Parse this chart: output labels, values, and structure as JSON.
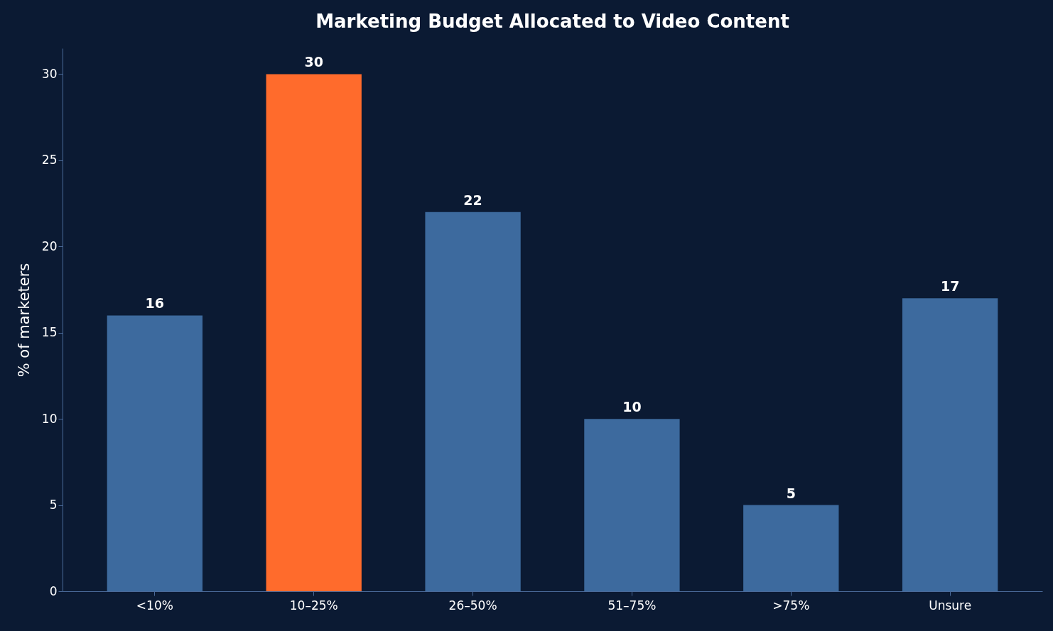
{
  "chart_data": {
    "type": "bar",
    "title": "Marketing Budget Allocated to Video Content",
    "ylabel": "% of marketers",
    "categories": [
      "<10%",
      "10–25%",
      "26–50%",
      "51–75%",
      ">75%",
      "Unsure"
    ],
    "values": [
      16,
      30,
      22,
      10,
      5,
      17
    ],
    "colors": [
      "#3d6a9e",
      "#ff6b2c",
      "#3d6a9e",
      "#3d6a9e",
      "#3d6a9e",
      "#3d6a9e"
    ],
    "ylim": [
      0,
      31.5
    ],
    "yticks": [
      0,
      5,
      10,
      15,
      20,
      25,
      30
    ],
    "grid": false,
    "data_labels": true
  }
}
